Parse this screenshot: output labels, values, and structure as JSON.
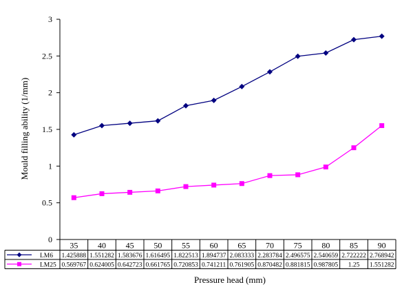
{
  "chart_data": {
    "type": "line",
    "title": "",
    "xlabel": "Pressure head (mm)",
    "ylabel": "Mould filling ability (1/mm)",
    "ylim": [
      0,
      3
    ],
    "yticks": [
      "0",
      "0.5",
      "1",
      "1.5",
      "2",
      "2.5",
      "3"
    ],
    "ytick_values": [
      0,
      0.5,
      1,
      1.5,
      2,
      2.5,
      3
    ],
    "categories": [
      "35",
      "40",
      "45",
      "50",
      "55",
      "60",
      "65",
      "70",
      "75",
      "80",
      "85",
      "90"
    ],
    "grid": false,
    "legend": "data-table-left",
    "series": [
      {
        "name": "LM6",
        "color": "#000080",
        "marker": "diamond",
        "values": [
          1.425888,
          1.551282,
          1.583676,
          1.616495,
          1.822513,
          1.894737,
          2.083333,
          2.283784,
          2.496575,
          2.540659,
          2.722222,
          2.768942
        ],
        "labels": [
          "1.425888",
          "1.551282",
          "1.583676",
          "1.616495",
          "1.822513",
          "1.894737",
          "2.083333",
          "2.283784",
          "2.496575",
          "2.540659",
          "2.722222",
          "2.768942"
        ]
      },
      {
        "name": "LM25",
        "color": "#ff00ff",
        "marker": "square",
        "values": [
          0.569767,
          0.624005,
          0.642723,
          0.661765,
          0.720853,
          0.741211,
          0.761905,
          0.870482,
          0.881815,
          0.987805,
          1.25,
          1.551282
        ],
        "labels": [
          "0.569767",
          "0.624005",
          "0.642723",
          "0.661765",
          "0.720853",
          "0.741211",
          "0.761905",
          "0.870482",
          "0.881815",
          "0.987805",
          "1.25",
          "1.551282"
        ]
      }
    ]
  }
}
